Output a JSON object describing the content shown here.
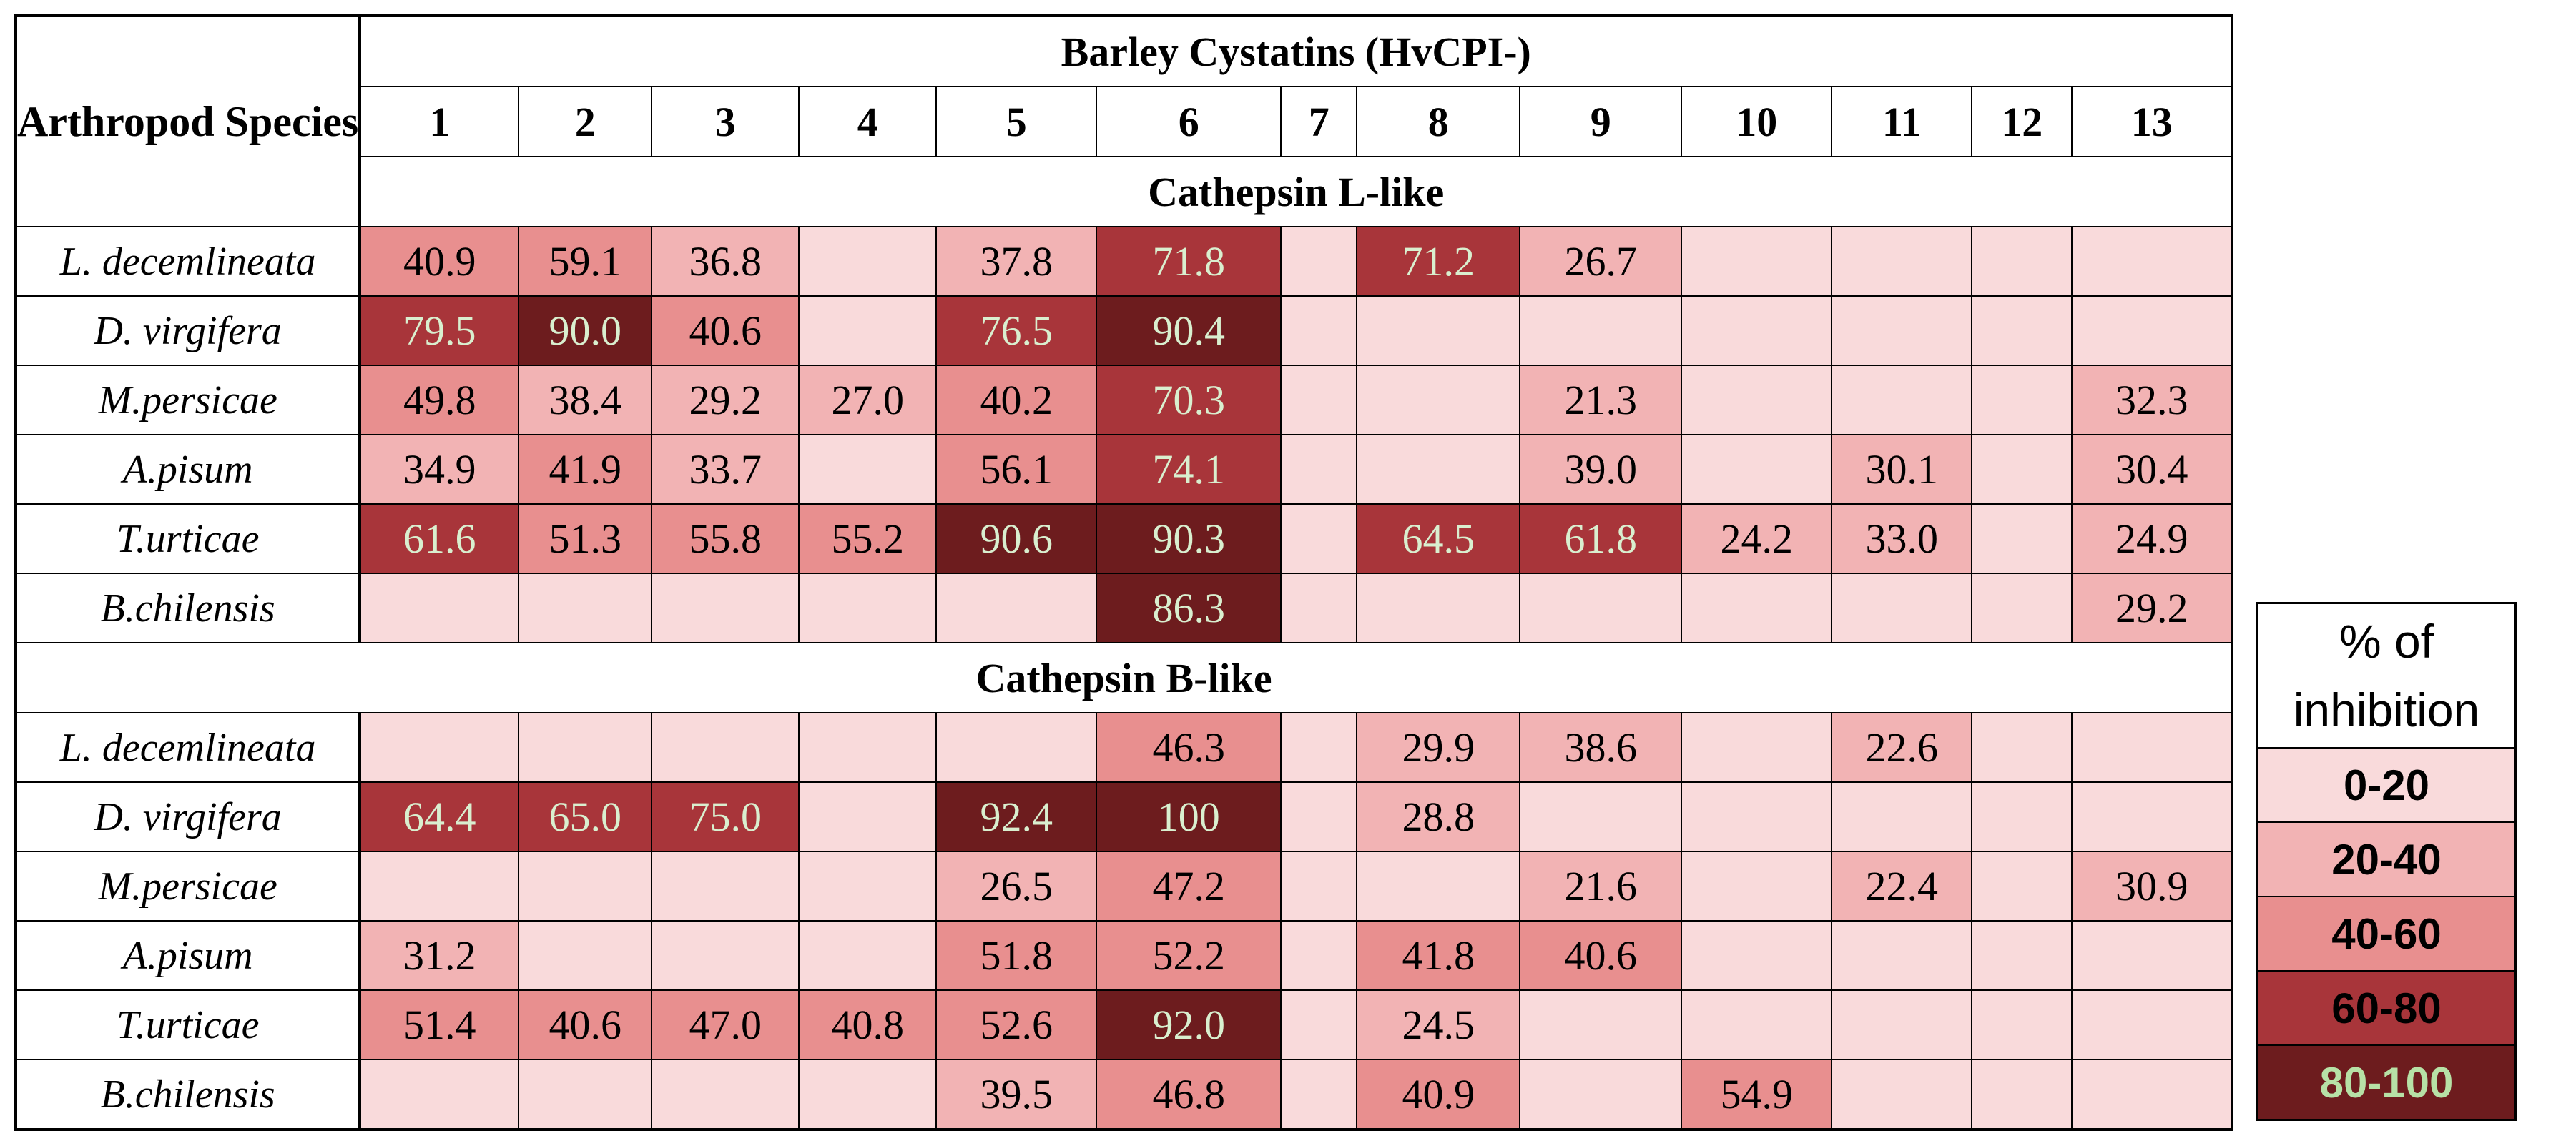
{
  "chart_data": {
    "type": "heatmap",
    "row_header": "Arthropod Species",
    "column_group_title": "Barley Cystatins (HvCPI-)",
    "columns": [
      "1",
      "2",
      "3",
      "4",
      "5",
      "6",
      "7",
      "8",
      "9",
      "10",
      "11",
      "12",
      "13"
    ],
    "sections": [
      {
        "name": "Cathepsin L-like",
        "rows": [
          {
            "species": "L. decemlineata",
            "values": [
              "40.9",
              "59.1",
              "36.8",
              "",
              "37.8",
              "71.8",
              "",
              "71.2",
              "26.7",
              "",
              "",
              "",
              ""
            ]
          },
          {
            "species": "D. virgifera",
            "values": [
              "79.5",
              "90.0",
              "40.6",
              "",
              "76.5",
              "90.4",
              "",
              "",
              "",
              "",
              "",
              "",
              ""
            ]
          },
          {
            "species": "M.persicae",
            "values": [
              "49.8",
              "38.4",
              "29.2",
              "27.0",
              "40.2",
              "70.3",
              "",
              "",
              "21.3",
              "",
              "",
              "",
              "32.3"
            ]
          },
          {
            "species": "A.pisum",
            "values": [
              "34.9",
              "41.9",
              "33.7",
              "",
              "56.1",
              "74.1",
              "",
              "",
              "39.0",
              "",
              "30.1",
              "",
              "30.4"
            ]
          },
          {
            "species": "T.urticae",
            "values": [
              "61.6",
              "51.3",
              "55.8",
              "55.2",
              "90.6",
              "90.3",
              "",
              "64.5",
              "61.8",
              "24.2",
              "33.0",
              "",
              "24.9"
            ]
          },
          {
            "species": "B.chilensis",
            "values": [
              "",
              "",
              "",
              "",
              "",
              "86.3",
              "",
              "",
              "",
              "",
              "",
              "",
              "29.2"
            ]
          }
        ]
      },
      {
        "name": "Cathepsin B-like",
        "rows": [
          {
            "species": "L. decemlineata",
            "values": [
              "",
              "",
              "",
              "",
              "",
              "46.3",
              "",
              "29.9",
              "38.6",
              "",
              "22.6",
              "",
              ""
            ]
          },
          {
            "species": "D. virgifera",
            "values": [
              "64.4",
              "65.0",
              "75.0",
              "",
              "92.4",
              "100",
              "",
              "28.8",
              "",
              "",
              "",
              "",
              ""
            ]
          },
          {
            "species": "M.persicae",
            "values": [
              "",
              "",
              "",
              "",
              "26.5",
              "47.2",
              "",
              "",
              "21.6",
              "",
              "22.4",
              "",
              "30.9"
            ]
          },
          {
            "species": "A.pisum",
            "values": [
              "31.2",
              "",
              "",
              "",
              "51.8",
              "52.2",
              "",
              "41.8",
              "40.6",
              "",
              "",
              "",
              ""
            ]
          },
          {
            "species": "T.urticae",
            "values": [
              "51.4",
              "40.6",
              "47.0",
              "40.8",
              "52.6",
              "92.0",
              "",
              "24.5",
              "",
              "",
              "",
              "",
              ""
            ]
          },
          {
            "species": "B.chilensis",
            "values": [
              "",
              "",
              "",
              "",
              "39.5",
              "46.8",
              "",
              "40.9",
              "",
              "54.9",
              "",
              "",
              ""
            ]
          }
        ]
      }
    ],
    "legend": {
      "title": "% of inhibition",
      "items": [
        {
          "label": "0-20",
          "min": 0,
          "max": 20,
          "color": "#f9dadb",
          "text_color": "#000000"
        },
        {
          "label": "20-40",
          "min": 20,
          "max": 40,
          "color": "#f2b3b4",
          "text_color": "#000000"
        },
        {
          "label": "40-60",
          "min": 40,
          "max": 60,
          "color": "#e88f8f",
          "text_color": "#000000"
        },
        {
          "label": "60-80",
          "min": 60,
          "max": 80,
          "color": "#a8353a",
          "text_color": "#000000"
        },
        {
          "label": "80-100",
          "min": 80,
          "max": 100,
          "color": "#6d1c1e",
          "text_color": "#b7e1a6"
        }
      ]
    }
  }
}
